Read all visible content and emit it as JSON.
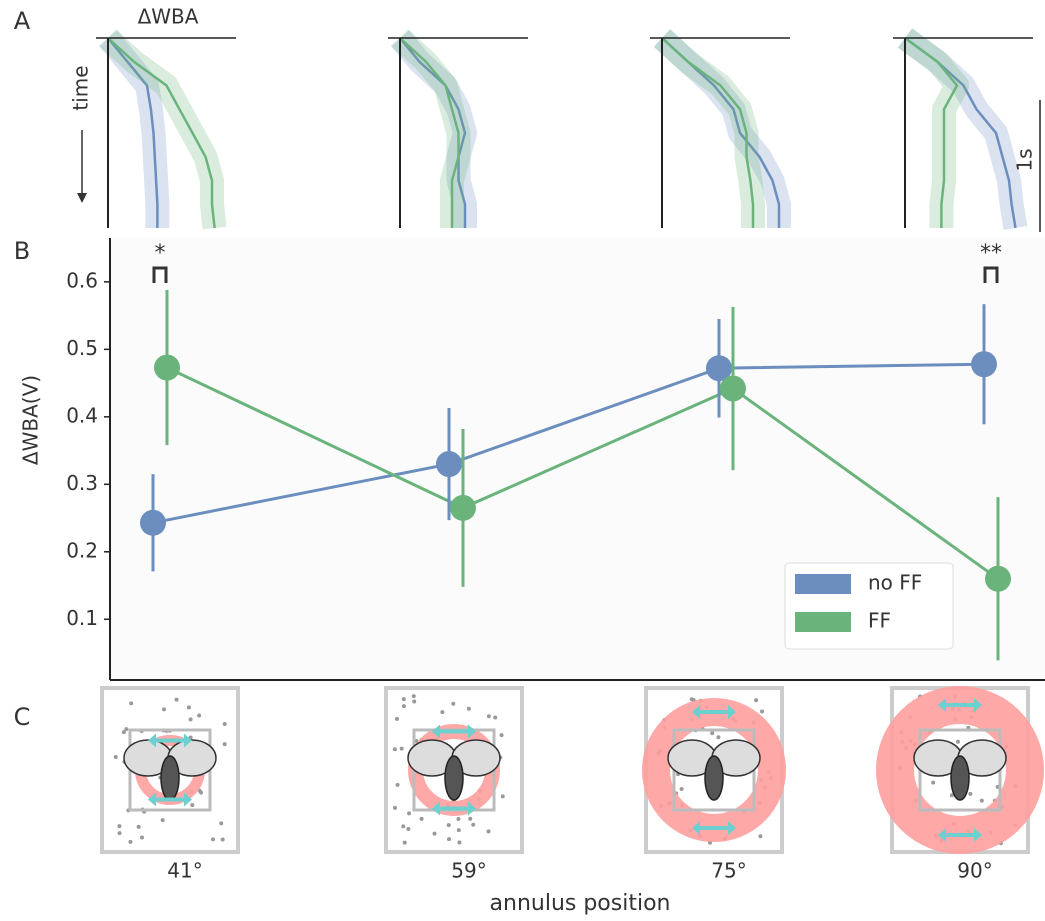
{
  "panel_labels": [
    "A",
    "B",
    "C"
  ],
  "chart_data": [
    {
      "type": "trace",
      "title": "ΔWBA",
      "ylabel": "time",
      "scale_label": "1s",
      "panels": [
        {
          "series": [
            {
              "color": "#6c8ebf",
              "values": [
                0,
                0.15,
                0.3,
                0.33,
                0.35,
                0.36,
                0.37,
                0.38,
                0.38
              ]
            },
            {
              "color": "#6ab47c",
              "values": [
                0,
                0.2,
                0.45,
                0.55,
                0.65,
                0.75,
                0.8,
                0.8,
                0.82
              ]
            }
          ]
        },
        {
          "series": [
            {
              "color": "#6c8ebf",
              "values": [
                0,
                0.15,
                0.35,
                0.45,
                0.5,
                0.45,
                0.45,
                0.5,
                0.5
              ]
            },
            {
              "color": "#6ab47c",
              "values": [
                0,
                0.2,
                0.35,
                0.4,
                0.45,
                0.45,
                0.4,
                0.4,
                0.4
              ]
            }
          ]
        },
        {
          "series": [
            {
              "color": "#6c8ebf",
              "values": [
                0,
                0.2,
                0.4,
                0.55,
                0.6,
                0.75,
                0.85,
                0.9,
                0.9
              ]
            },
            {
              "color": "#6ab47c",
              "values": [
                0,
                0.2,
                0.45,
                0.6,
                0.65,
                0.65,
                0.68,
                0.7,
                0.7
              ]
            }
          ]
        },
        {
          "series": [
            {
              "color": "#6c8ebf",
              "values": [
                0,
                0.25,
                0.45,
                0.55,
                0.7,
                0.75,
                0.8,
                0.82,
                0.85
              ]
            },
            {
              "color": "#6ab47c",
              "values": [
                0,
                0.25,
                0.4,
                0.3,
                0.3,
                0.3,
                0.3,
                0.28,
                0.28
              ]
            }
          ]
        }
      ]
    },
    {
      "type": "line",
      "ylabel": "ΔWBA(V)",
      "xlabel": "annulus position",
      "categories": [
        "41°",
        "59°",
        "75°",
        "90°"
      ],
      "series": [
        {
          "name": "no FF",
          "color": "#6c8ebf",
          "values": [
            0.243,
            0.33,
            0.472,
            0.478
          ],
          "errors": [
            0.072,
            0.083,
            0.073,
            0.089
          ]
        },
        {
          "name": "FF",
          "color": "#6ab47c",
          "values": [
            0.473,
            0.265,
            0.442,
            0.16
          ],
          "errors": [
            0.115,
            0.117,
            0.121,
            0.121
          ]
        }
      ],
      "ylim": [
        0.01,
        0.665
      ],
      "yticks": [
        0.1,
        0.2,
        0.3,
        0.4,
        0.5,
        0.6
      ],
      "annotations": [
        {
          "text": "*",
          "category": "41°"
        },
        {
          "text": "**",
          "category": "90°"
        }
      ],
      "legend": "lower right"
    }
  ]
}
